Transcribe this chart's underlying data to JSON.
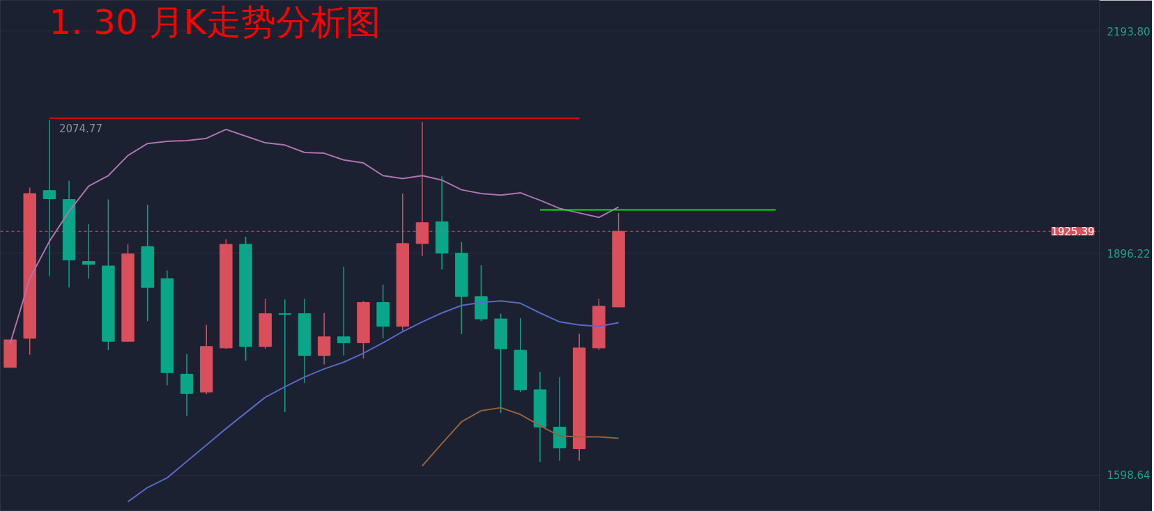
{
  "chart_data": {
    "type": "candlestick",
    "title": "1. 30 月K走势分析图",
    "categories": [
      null,
      null,
      null,
      null,
      null,
      null,
      null,
      null,
      null,
      null,
      null,
      null,
      null,
      null,
      null,
      null,
      null,
      null,
      null,
      null,
      null,
      null,
      null,
      null,
      null,
      null,
      null,
      null,
      null,
      null,
      null,
      null,
      null,
      null,
      null,
      null,
      null,
      null,
      null,
      null
    ],
    "ohlc": [
      [
        1743,
        1780,
        1743,
        1780
      ],
      [
        1782,
        1984,
        1760,
        1976
      ],
      [
        1980,
        2074.77,
        1865,
        1969
      ],
      [
        1968,
        1993,
        1850,
        1887
      ],
      [
        1885,
        1935,
        1862,
        1881
      ],
      [
        1879,
        1968,
        1766,
        1778
      ],
      [
        1778,
        1908,
        1777,
        1895
      ],
      [
        1905,
        1961,
        1805,
        1850
      ],
      [
        1862,
        1873,
        1719,
        1736
      ],
      [
        1734,
        1761,
        1678,
        1708
      ],
      [
        1710,
        1800,
        1707,
        1771
      ],
      [
        1769,
        1915,
        1768,
        1908
      ],
      [
        1908,
        1918,
        1752,
        1771
      ],
      [
        1771,
        1835,
        1768,
        1815
      ],
      [
        1815,
        1834,
        1683,
        1814
      ],
      [
        1815,
        1835,
        1722,
        1759
      ],
      [
        1759,
        1816,
        1747,
        1784
      ],
      [
        1784,
        1878,
        1759,
        1776
      ],
      [
        1776,
        1832,
        1755,
        1830
      ],
      [
        1830,
        1854,
        1782,
        1798
      ],
      [
        1798,
        1976,
        1792,
        1909
      ],
      [
        1909,
        2072,
        1892,
        1937
      ],
      [
        1938,
        1999,
        1874,
        1896
      ],
      [
        1896,
        1911,
        1788,
        1838
      ],
      [
        1838,
        1880,
        1805,
        1808
      ],
      [
        1808,
        1815,
        1682,
        1768
      ],
      [
        1766,
        1809,
        1710,
        1713
      ],
      [
        1713,
        1737,
        1616,
        1663
      ],
      [
        1663,
        1730,
        1618,
        1635
      ],
      [
        1634,
        1788,
        1618,
        1769
      ],
      [
        1769,
        1835,
        1766,
        1825
      ],
      [
        1824,
        1950,
        1824,
        1925.39
      ],
      null,
      null,
      null,
      null,
      null,
      null,
      null,
      null
    ],
    "colors": [
      "#d94f5c",
      "#d94f5c",
      "#0aa68a",
      "#0aa68a",
      "#0aa68a",
      "#0aa68a",
      "#d94f5c",
      "#0aa68a",
      "#0aa68a",
      "#0aa68a",
      "#d94f5c",
      "#d94f5c",
      "#0aa68a",
      "#d94f5c",
      "#0aa68a",
      "#0aa68a",
      "#d94f5c",
      "#0aa68a",
      "#d94f5c",
      "#0aa68a",
      "#d94f5c",
      "#d94f5c",
      "#0aa68a",
      "#0aa68a",
      "#0aa68a",
      "#0aa68a",
      "#0aa68a",
      "#0aa68a",
      "#0aa68a",
      "#d94f5c",
      "#d94f5c",
      "#d94f5c",
      null,
      null,
      null,
      null,
      null,
      null,
      null,
      null
    ],
    "series": [
      {
        "type": "line",
        "color": "#b072b0",
        "values": [
          1775,
          1862,
          1912,
          1952,
          1986,
          2000,
          2027,
          2043,
          2046,
          2047,
          2050,
          2062,
          2053,
          2044,
          2041,
          2031,
          2030,
          2021,
          2017,
          2000,
          1996,
          2000,
          1994,
          1981,
          1976,
          1974,
          1977,
          1967,
          1956,
          1950,
          1944,
          1958,
          null,
          null,
          null,
          null,
          null,
          null,
          null,
          null
        ]
      },
      {
        "type": "line",
        "color": "#5868c8",
        "values": [
          null,
          null,
          null,
          null,
          null,
          null,
          1563,
          1582,
          1595,
          1617,
          1639,
          1661,
          1682,
          1703,
          1717,
          1730,
          1741,
          1750,
          1762,
          1776,
          1791,
          1804,
          1816,
          1826,
          1830,
          1832,
          1829,
          1816,
          1804,
          1800,
          1798,
          1803,
          null,
          null,
          null,
          null,
          null,
          null,
          null,
          null
        ]
      },
      {
        "type": "line",
        "color": "#9a5f3a",
        "values": [
          null,
          null,
          null,
          null,
          null,
          null,
          null,
          null,
          null,
          null,
          null,
          null,
          null,
          null,
          null,
          null,
          null,
          null,
          null,
          null,
          null,
          1611,
          1641,
          1670,
          1685,
          1689,
          1680,
          1665,
          1651,
          1650,
          1650,
          1648,
          null,
          null,
          null,
          null,
          null,
          null,
          null,
          null
        ]
      },
      {
        "type": "line",
        "color": "#ff0000",
        "values": [
          null,
          null,
          2077,
          2077,
          2077,
          2077,
          2077,
          2077,
          2077,
          2077,
          2077,
          2077,
          2077,
          2077,
          2077,
          2077,
          2077,
          2077,
          2077,
          2077,
          2077,
          2077,
          2077,
          2077,
          2077,
          2077,
          2077,
          2077,
          2077,
          2077,
          null,
          null,
          null,
          null,
          null,
          null,
          null,
          null,
          null,
          null
        ]
      },
      {
        "type": "line",
        "color": "#00ee00",
        "values": [
          null,
          null,
          null,
          null,
          null,
          null,
          null,
          null,
          null,
          null,
          null,
          null,
          null,
          null,
          null,
          null,
          null,
          null,
          null,
          null,
          null,
          null,
          null,
          null,
          null,
          null,
          null,
          1954,
          1954,
          1954,
          1954,
          1954,
          1954,
          1954,
          1954,
          1954,
          1954,
          1954,
          1954,
          1954
        ]
      }
    ],
    "annotations": [
      "2074.77"
    ],
    "ref_lines": [
      {
        "axis": "y",
        "value": 1925.39,
        "label": "1925.39",
        "color": "#d94f5c",
        "line_style": "dashed"
      }
    ],
    "ylim": [
      1550.1,
      2234.9
    ],
    "yticks": [
      1598.64,
      1896.22,
      {
        "value": 2193.8,
        "label": "2193.80"
      }
    ],
    "tick_labels": "y",
    "grid": "y"
  }
}
